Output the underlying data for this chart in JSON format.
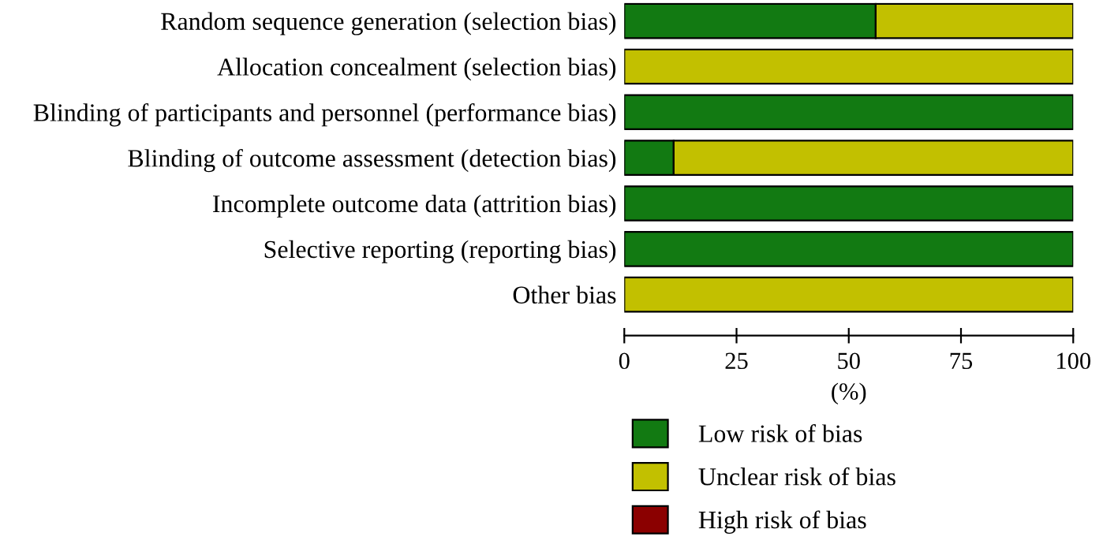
{
  "chart_data": {
    "type": "bar",
    "orientation": "horizontal",
    "stacked": true,
    "categories": [
      "Random sequence generation (selection bias)",
      "Allocation concealment (selection bias)",
      "Blinding of participants and personnel (performance bias)",
      "Blinding of outcome assessment (detection bias)",
      "Incomplete outcome data (attrition bias)",
      "Selective reporting (reporting bias)",
      "Other bias"
    ],
    "series": [
      {
        "name": "Low risk of bias",
        "color": "#127a12",
        "values": [
          56,
          0,
          100,
          11,
          100,
          100,
          0
        ]
      },
      {
        "name": "Unclear risk of bias",
        "color": "#c2c000",
        "values": [
          44,
          100,
          0,
          89,
          0,
          0,
          100
        ]
      },
      {
        "name": "High risk of bias",
        "color": "#8b0000",
        "values": [
          0,
          0,
          0,
          0,
          0,
          0,
          0
        ]
      }
    ],
    "xlim": [
      0,
      100
    ],
    "xticks": [
      0,
      25,
      50,
      75,
      100
    ],
    "xlabel": "(%)",
    "grid": false,
    "legend": "bottom"
  }
}
